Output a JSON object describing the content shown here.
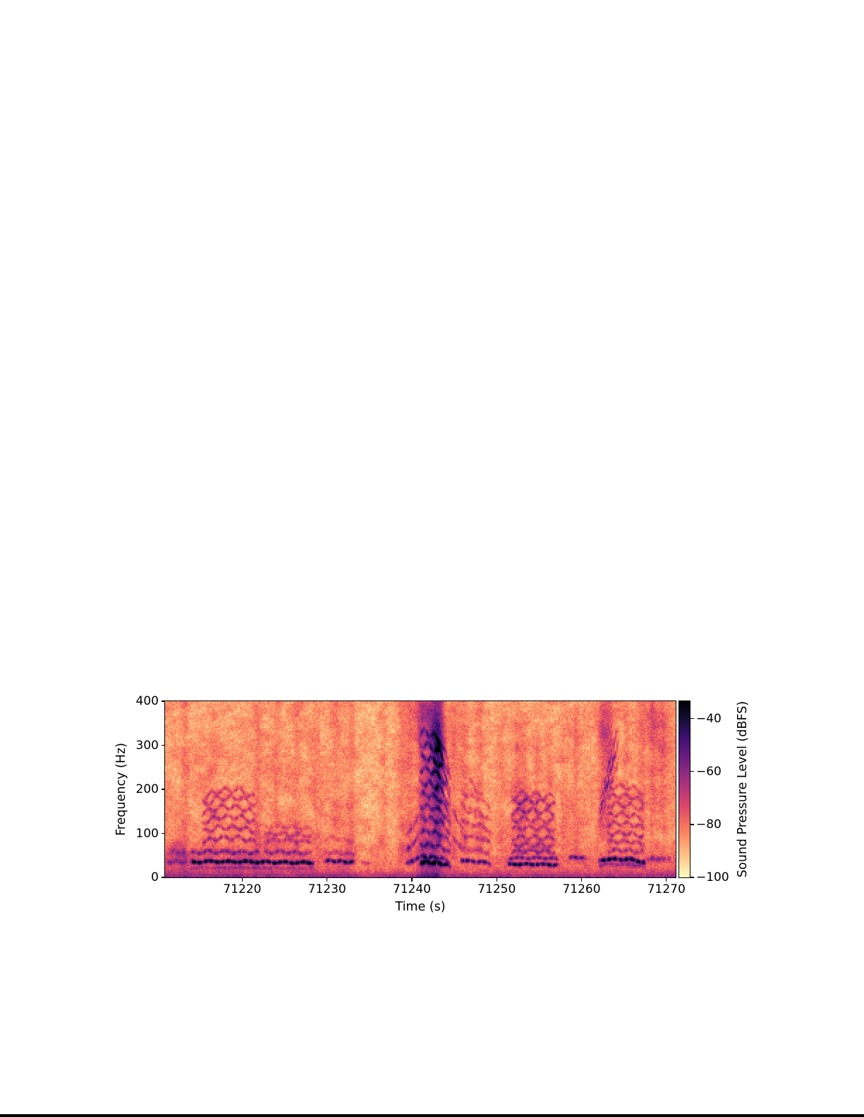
{
  "figure": {
    "background_color": "#ffffff",
    "bottom_edge_bar_color": "#000000",
    "axis_color": "#000000"
  },
  "chart_data": {
    "type": "heatmap",
    "subtype": "spectrogram",
    "title": "",
    "xlabel": "Time (s)",
    "ylabel": "Frequency (Hz)",
    "x_range": [
      71210.9,
      71271.1
    ],
    "y_range": [
      0,
      400
    ],
    "x_ticks": [
      71220,
      71230,
      71240,
      71250,
      71260,
      71270
    ],
    "y_ticks": [
      0,
      100,
      200,
      300,
      400
    ],
    "grid": false,
    "colorbar": {
      "label": "Sound Pressure Level (dBFS)",
      "ticks": [
        -40,
        -60,
        -80,
        -100
      ],
      "vmin": -100,
      "vmax": -33.4,
      "colormap": "magma_r"
    },
    "colormap_rgb": [
      [
        0,
        0,
        4
      ],
      [
        21,
        15,
        52
      ],
      [
        59,
        15,
        112
      ],
      [
        100,
        26,
        128
      ],
      [
        140,
        41,
        129
      ],
      [
        183,
        55,
        121
      ],
      [
        222,
        73,
        104
      ],
      [
        247,
        112,
        92
      ],
      [
        254,
        159,
        109
      ],
      [
        254,
        207,
        146
      ],
      [
        252,
        253,
        191
      ]
    ],
    "background_db_vs_freq": [
      [
        0,
        -60
      ],
      [
        4,
        -63
      ],
      [
        10,
        -70
      ],
      [
        18,
        -75.5
      ],
      [
        30,
        -78
      ],
      [
        55,
        -80.5
      ],
      [
        85,
        -83.2
      ],
      [
        150,
        -84.6
      ],
      [
        250,
        -85.3
      ],
      [
        400,
        -86
      ]
    ],
    "noise_db": {
      "white": 4.0,
      "mid": 3.0,
      "coarse": 3.0
    },
    "calls": [
      {
        "name": "moan-A-fundamental",
        "t0": 71213.8,
        "t1": 71228.6,
        "f0": [
          [
            71213.8,
            34
          ],
          [
            71216,
            36
          ],
          [
            71222,
            35
          ],
          [
            71228.6,
            33
          ]
        ],
        "wiggle": [
          1.5,
          0.45
        ],
        "lines": [
          [
            1,
            44,
            3.5
          ],
          [
            0.62,
            11,
            3
          ]
        ]
      },
      {
        "name": "moan-A-h2",
        "t0": 71213.8,
        "t1": 71222.2,
        "f0": [
          [
            71213.8,
            34
          ],
          [
            71216,
            36
          ],
          [
            71222.2,
            35
          ]
        ],
        "wiggle": [
          2,
          0.5
        ],
        "lines": [
          [
            1.62,
            21,
            3.5
          ]
        ]
      },
      {
        "name": "moan-A-harmonic-ladder",
        "t0": 71215.2,
        "t1": 71221.7,
        "f0": [
          [
            71215.2,
            33
          ],
          [
            71217.2,
            36.5
          ],
          [
            71219.8,
            36.5
          ],
          [
            71221.7,
            33
          ]
        ],
        "wiggle": [
          2.5,
          0.6
        ],
        "lines": [
          [
            2.45,
            19,
            3.5
          ],
          [
            3.1,
            18,
            3.5
          ],
          [
            3.75,
            17,
            3.5
          ],
          [
            4.35,
            17,
            3.5
          ],
          [
            4.95,
            16,
            3.5
          ],
          [
            5.4,
            15,
            3.5
          ]
        ]
      },
      {
        "name": "moan-B-stack",
        "t0": 71222.4,
        "t1": 71228.3,
        "f0": [
          [
            71222.4,
            35
          ],
          [
            71225,
            35.5
          ],
          [
            71228.3,
            33.5
          ]
        ],
        "wiggle": [
          2,
          0.55
        ],
        "lines": [
          [
            1.62,
            17,
            3.5
          ],
          [
            2.4,
            15,
            4
          ],
          [
            2.78,
            13,
            4
          ],
          [
            3.25,
            9,
            4
          ]
        ]
      },
      {
        "name": "moan-C",
        "t0": 71229.6,
        "t1": 71233.4,
        "f0": [
          [
            71229.6,
            36
          ],
          [
            71230.6,
            37.5
          ],
          [
            71232,
            35.5
          ],
          [
            71233.4,
            34
          ]
        ],
        "wiggle": [
          1.5,
          0.7
        ],
        "lines": [
          [
            1,
            38,
            3.5
          ],
          [
            1.52,
            12,
            3.5
          ],
          [
            2.4,
            7,
            4
          ]
        ]
      },
      {
        "name": "moan-D-short",
        "t0": 71233.9,
        "t1": 71235.4,
        "f0": [
          [
            71233.9,
            34
          ],
          [
            71235.4,
            33
          ]
        ],
        "wiggle": [
          1,
          0.5
        ],
        "lines": [
          [
            1,
            13,
            3.5
          ]
        ]
      },
      {
        "name": "loud-call-E-upsweep",
        "t0": 71239.2,
        "t1": 71241.0,
        "f0": [
          [
            71239.2,
            31
          ],
          [
            71240.3,
            39
          ],
          [
            71241.0,
            50
          ]
        ],
        "wiggle": [
          1,
          0.3
        ],
        "lines": [
          [
            1,
            30,
            4
          ],
          [
            2,
            22,
            4.5
          ],
          [
            3,
            12,
            5
          ]
        ]
      },
      {
        "name": "loud-call-E-harmonics",
        "t0": 71240.8,
        "t1": 71244.7,
        "f0": [
          [
            71240.8,
            30
          ],
          [
            71242.2,
            29.5
          ],
          [
            71243.4,
            28
          ],
          [
            71244.0,
            25
          ],
          [
            71244.7,
            21
          ]
        ],
        "wiggle": [
          2,
          0.8
        ],
        "lines": [
          [
            1.15,
            40,
            4
          ],
          [
            1.55,
            26,
            4
          ],
          [
            2.5,
            22,
            4.5
          ],
          [
            3.5,
            20,
            4.5
          ],
          [
            4.5,
            19,
            4.5
          ],
          [
            5.4,
            19,
            4.5
          ],
          [
            6.3,
            20,
            5
          ],
          [
            7.2,
            21,
            5
          ],
          [
            8.2,
            22,
            5
          ],
          [
            9.1,
            23,
            5
          ],
          [
            10.1,
            21,
            5
          ],
          [
            11,
            16,
            5
          ]
        ]
      },
      {
        "name": "call-F",
        "t0": 71245.6,
        "t1": 71249.4,
        "f0": [
          [
            71245.6,
            41
          ],
          [
            71246.5,
            37
          ],
          [
            71248,
            36
          ],
          [
            71249.4,
            31
          ]
        ],
        "wiggle": [
          1.5,
          0.6
        ],
        "lines": [
          [
            1,
            36,
            3.5
          ],
          [
            1.7,
            12,
            4
          ],
          [
            2.5,
            16,
            4
          ],
          [
            3.3,
            13,
            4
          ],
          [
            4.1,
            12,
            4
          ],
          [
            5,
            10,
            4
          ]
        ]
      },
      {
        "name": "downsweep-hook-1",
        "t0": 71244.7,
        "t1": 71246.3,
        "f0": [
          [
            71244.7,
            160
          ],
          [
            71245.5,
            122
          ],
          [
            71246.3,
            106
          ]
        ],
        "wiggle": [
          2,
          1
        ],
        "lines": [
          [
            1,
            14,
            4.5
          ]
        ]
      },
      {
        "name": "downsweep-hook-2",
        "t0": 71244.7,
        "t1": 71246.4,
        "f0": [
          [
            71244.7,
            96
          ],
          [
            71245.6,
            71
          ],
          [
            71246.4,
            62
          ]
        ],
        "wiggle": [
          2,
          1
        ],
        "lines": [
          [
            1,
            14,
            4.5
          ]
        ]
      },
      {
        "name": "downsweep-hook-3",
        "t0": 71246.6,
        "t1": 71248.4,
        "f0": [
          [
            71246.6,
            232
          ],
          [
            71247.6,
            196
          ],
          [
            71248.4,
            186
          ]
        ],
        "wiggle": [
          2,
          1
        ],
        "lines": [
          [
            1,
            10,
            5
          ]
        ]
      },
      {
        "name": "downsweep-hook-4",
        "t0": 71246.5,
        "t1": 71248.7,
        "f0": [
          [
            71246.5,
            162
          ],
          [
            71247.6,
            141
          ],
          [
            71248.7,
            133
          ]
        ],
        "wiggle": [
          2,
          1
        ],
        "lines": [
          [
            1,
            11,
            4.5
          ]
        ]
      },
      {
        "name": "moan-G-fundamental",
        "t0": 71251.2,
        "t1": 71257.4,
        "f0": [
          [
            71251.2,
            29
          ],
          [
            71252.2,
            30
          ],
          [
            71256,
            29.5
          ],
          [
            71257.4,
            28
          ]
        ],
        "wiggle": [
          1.2,
          0.5
        ],
        "lines": [
          [
            1,
            42,
            3.5
          ],
          [
            1.48,
            26,
            3.8
          ]
        ]
      },
      {
        "name": "moan-G-harmonic-ladder",
        "t0": 71251.6,
        "t1": 71257.0,
        "f0": [
          [
            71251.6,
            29
          ],
          [
            71253,
            30
          ],
          [
            71255.5,
            29.5
          ],
          [
            71257,
            28.5
          ]
        ],
        "wiggle": [
          2.5,
          0.6
        ],
        "lines": [
          [
            2.0,
            17,
            3.5
          ],
          [
            2.48,
            15,
            3.5
          ],
          [
            3.03,
            16,
            3.5
          ],
          [
            3.76,
            14,
            3.5
          ],
          [
            4.41,
            15,
            3.5
          ],
          [
            5.07,
            19,
            3.5
          ],
          [
            5.79,
            19,
            3.5
          ],
          [
            6.3,
            13,
            3.5
          ]
        ]
      },
      {
        "name": "short-call-H",
        "t0": 71258.4,
        "t1": 71260.6,
        "f0": [
          [
            71258.4,
            44
          ],
          [
            71259.4,
            46
          ],
          [
            71260.6,
            42
          ]
        ],
        "wiggle": [
          1.5,
          0.7
        ],
        "lines": [
          [
            1,
            29,
            3.5
          ]
        ]
      },
      {
        "name": "call-I-fundamental",
        "t0": 71261.9,
        "t1": 71267.7,
        "f0": [
          [
            71261.9,
            36
          ],
          [
            71262.7,
            41
          ],
          [
            71265.6,
            41
          ],
          [
            71267.7,
            33
          ]
        ],
        "wiggle": [
          1.5,
          0.5
        ],
        "lines": [
          [
            1,
            42,
            4
          ],
          [
            0.73,
            18,
            3.5
          ]
        ]
      },
      {
        "name": "call-I-harmonic-ladder",
        "t0": 71262.9,
        "t1": 71267.5,
        "f0": [
          [
            71262.9,
            40
          ],
          [
            71264.2,
            41
          ],
          [
            71266.2,
            40
          ],
          [
            71267.5,
            37
          ]
        ],
        "wiggle": [
          2.5,
          0.65
        ],
        "lines": [
          [
            1.5,
            17,
            3.5
          ],
          [
            2.0,
            16,
            3.5
          ],
          [
            2.45,
            19,
            3.5
          ],
          [
            3.0,
            15,
            3.5
          ],
          [
            3.5,
            16,
            3.5
          ],
          [
            4.05,
            15,
            3.5
          ],
          [
            4.55,
            14,
            3.5
          ],
          [
            5.05,
            12,
            3.5
          ]
        ]
      },
      {
        "name": "call-I-rising-chirp",
        "t0": 71261.9,
        "t1": 71264.5,
        "f0": [
          [
            71261.9,
            135
          ],
          [
            71262.7,
            182
          ],
          [
            71263.4,
            238
          ],
          [
            71264.1,
            288
          ],
          [
            71264.5,
            316
          ]
        ],
        "wiggle": [
          5,
          2.2
        ],
        "lines": [
          [
            1,
            21,
            5
          ],
          [
            1.13,
            13,
            5
          ],
          [
            0.87,
            11,
            5
          ]
        ]
      },
      {
        "name": "tail-moan",
        "t0": 71267.6,
        "t1": 71270.6,
        "f0": [
          [
            71267.6,
            40
          ],
          [
            71269,
            43
          ],
          [
            71270.6,
            40
          ]
        ],
        "wiggle": [
          1.5,
          0.5
        ],
        "lines": [
          [
            1,
            20,
            4.5
          ]
        ]
      },
      {
        "name": "left-edge-moan",
        "t0": 71210.9,
        "t1": 71213.6,
        "f0": [
          [
            71210.9,
            34
          ],
          [
            71212.3,
            36
          ],
          [
            71213.6,
            34
          ]
        ],
        "wiggle": [
          2,
          0.8
        ],
        "lines": [
          [
            1,
            16,
            4
          ],
          [
            1.6,
            10,
            5
          ]
        ]
      }
    ],
    "blobs": [
      [
        71243.1,
        295,
        0.55,
        55,
        18
      ],
      [
        71242.3,
        365,
        0.5,
        45,
        10
      ],
      [
        71241.0,
        380,
        0.6,
        50,
        10
      ],
      [
        71212.4,
        55,
        0.7,
        20,
        10
      ],
      [
        71221.5,
        45,
        8,
        28,
        3.5
      ],
      [
        71253.8,
        150,
        1.6,
        40,
        4
      ],
      [
        71262.6,
        340,
        0.45,
        45,
        9
      ],
      [
        71263.4,
        300,
        0.5,
        55,
        7
      ],
      [
        71268.3,
        350,
        1.4,
        55,
        5
      ],
      [
        71269.6,
        300,
        1.0,
        70,
        4
      ]
    ],
    "streaks": [
      [
        71213.3,
        0.3,
        5,
        0,
        400
      ],
      [
        71216.6,
        0.35,
        3,
        60,
        400
      ],
      [
        71221.8,
        0.3,
        5,
        40,
        400
      ],
      [
        71224.1,
        0.3,
        3,
        60,
        400
      ],
      [
        71226.4,
        0.35,
        4,
        50,
        400
      ],
      [
        71228.7,
        0.3,
        3,
        60,
        400
      ],
      [
        71231.1,
        0.3,
        3,
        50,
        400
      ],
      [
        71232.9,
        0.3,
        4,
        50,
        400
      ],
      [
        71236.0,
        2.2,
        -2.5,
        0,
        400
      ],
      [
        71236.7,
        0.3,
        4,
        60,
        400
      ],
      [
        71238.8,
        0.35,
        5,
        30,
        400
      ],
      [
        71239.7,
        0.35,
        6,
        30,
        400
      ],
      [
        71241.3,
        0.55,
        11,
        0,
        400
      ],
      [
        71242.7,
        0.6,
        14,
        0,
        400
      ],
      [
        71243.3,
        0.45,
        12,
        80,
        400
      ],
      [
        71244.9,
        0.35,
        6,
        40,
        400
      ],
      [
        71246.2,
        0.35,
        5,
        50,
        400
      ],
      [
        71248.0,
        0.3,
        4,
        60,
        400
      ],
      [
        71250.5,
        0.3,
        3,
        60,
        400
      ],
      [
        71252.4,
        0.4,
        6,
        50,
        320
      ],
      [
        71253.2,
        0.35,
        5,
        50,
        320
      ],
      [
        71254.8,
        0.3,
        4,
        50,
        300
      ],
      [
        71256.2,
        0.3,
        4,
        50,
        300
      ],
      [
        71257.9,
        0.3,
        3,
        60,
        400
      ],
      [
        71259.4,
        0.3,
        4,
        60,
        400
      ],
      [
        71262.5,
        0.4,
        6,
        80,
        400
      ],
      [
        71263.3,
        0.35,
        5,
        60,
        400
      ],
      [
        71265.3,
        0.3,
        4,
        60,
        350
      ],
      [
        71267.1,
        0.3,
        4,
        60,
        400
      ],
      [
        71268.4,
        0.35,
        5,
        120,
        400
      ],
      [
        71269.6,
        0.3,
        4,
        100,
        400
      ]
    ]
  }
}
